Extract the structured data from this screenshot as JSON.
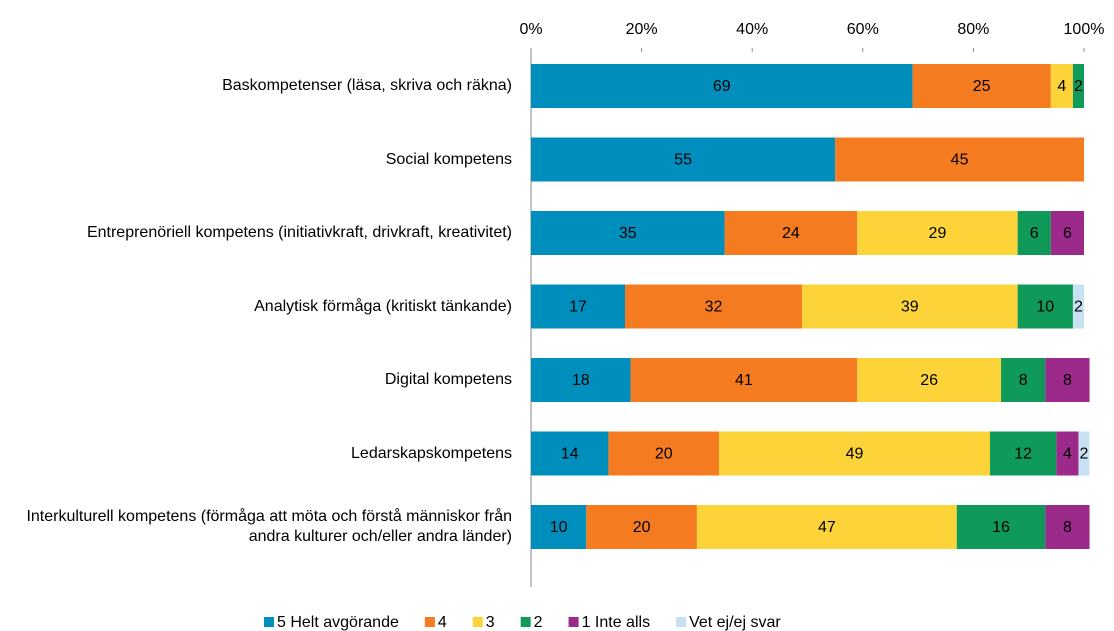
{
  "chart_data": {
    "type": "stacked-barh",
    "categories": [
      "Baskompetenser (läsa, skriva och räkna)",
      "Social kompetens",
      "Entreprenöriell kompetens (initiativkraft, drivkraft, kreativitet)",
      "Analytisk förmåga (kritiskt tänkande)",
      "Digital kompetens",
      "Ledarskapskompetens",
      "Interkulturell kompetens (förmåga att möta och förstå människor från andra kulturer och/eller andra länder)"
    ],
    "series": [
      {
        "name": "5 Helt avgörande",
        "color": "#008fbd",
        "values": [
          69,
          55,
          35,
          17,
          18,
          14,
          10
        ]
      },
      {
        "name": "4",
        "color": "#f47b20",
        "values": [
          25,
          45,
          24,
          32,
          41,
          20,
          20
        ]
      },
      {
        "name": "3",
        "color": "#fcd43a",
        "values": [
          4,
          null,
          29,
          39,
          26,
          49,
          47
        ]
      },
      {
        "name": "2",
        "color": "#0f9a5a",
        "values": [
          2,
          null,
          6,
          10,
          8,
          12,
          16
        ]
      },
      {
        "name": "1 Inte alls",
        "color": "#9c2a8b",
        "values": [
          null,
          null,
          6,
          null,
          8,
          4,
          8
        ]
      },
      {
        "name": "Vet ej/ej svar",
        "color": "#c8e1f2",
        "values": [
          null,
          null,
          null,
          2,
          null,
          2,
          null
        ]
      }
    ],
    "xlim": [
      0,
      100
    ],
    "xticks": [
      {
        "value": 0,
        "label": "0%"
      },
      {
        "value": 20,
        "label": "20%"
      },
      {
        "value": 40,
        "label": "40%"
      },
      {
        "value": 60,
        "label": "60%"
      },
      {
        "value": 80,
        "label": "80%"
      },
      {
        "value": 100,
        "label": "100%"
      }
    ],
    "legend": "bottom"
  }
}
